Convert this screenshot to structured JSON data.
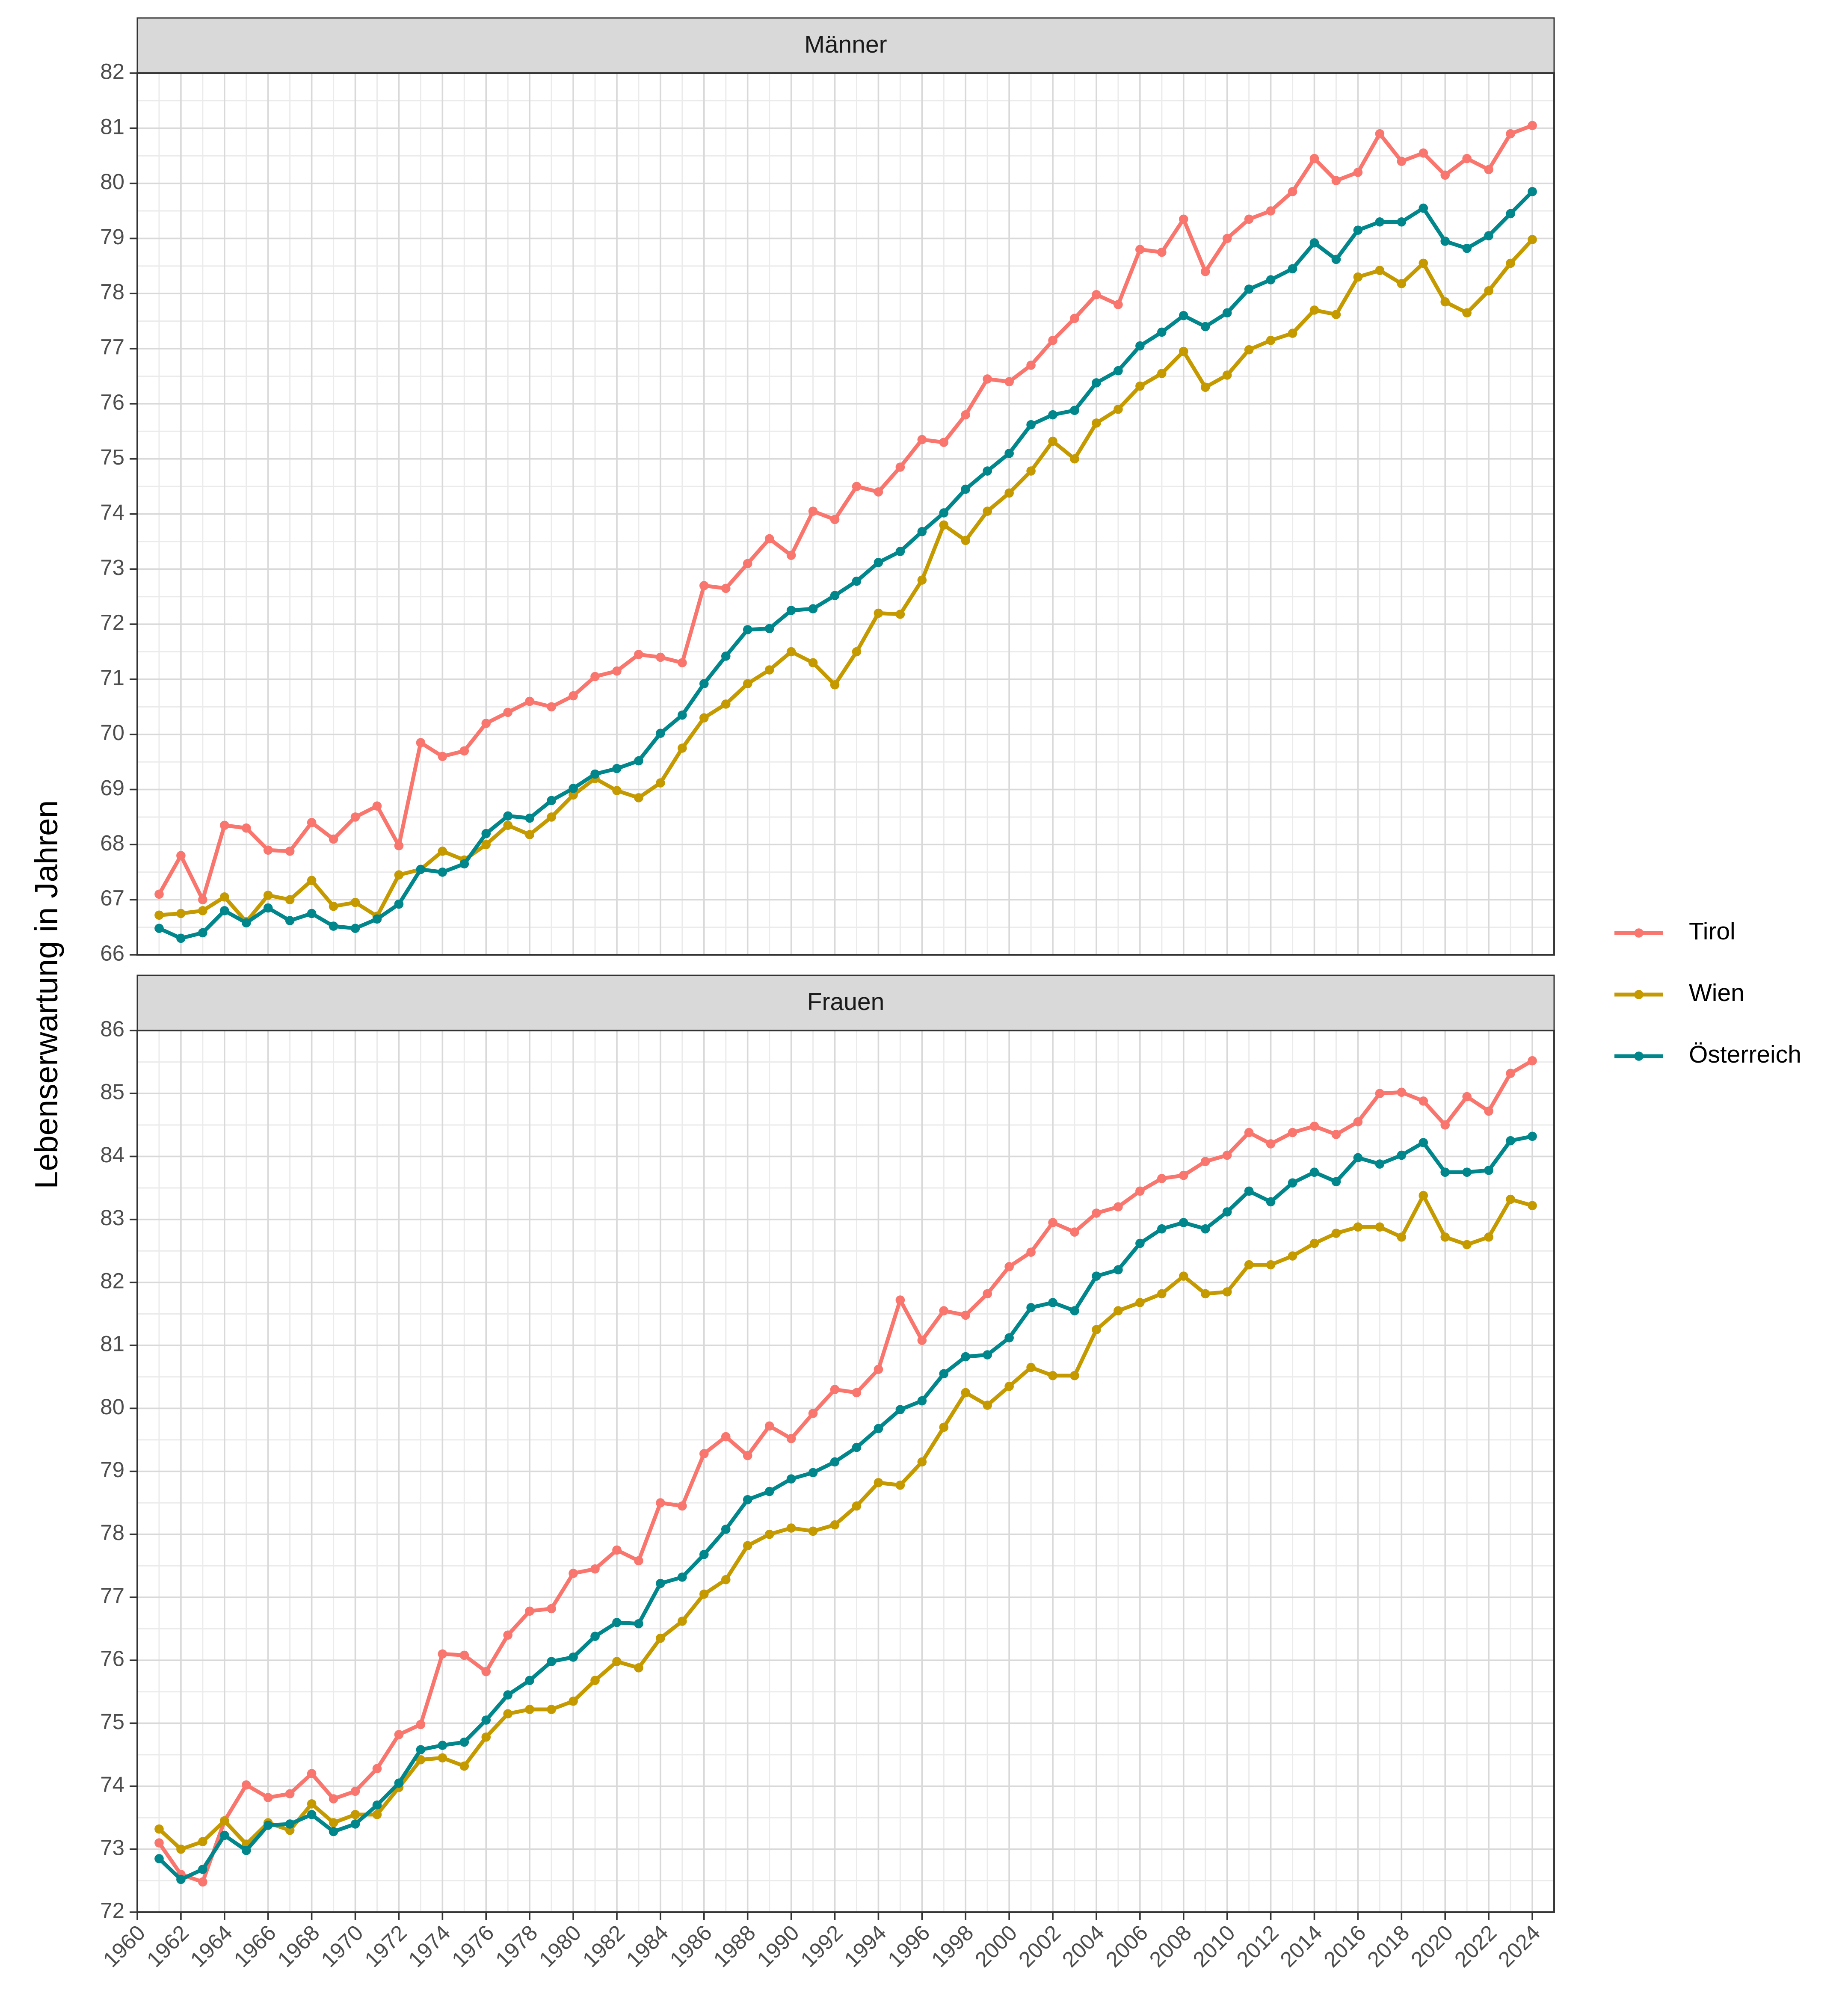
{
  "chart_data": [
    {
      "type": "line",
      "title": "Männer",
      "ylabel": "Lebenserwartung in Jahren",
      "legend": "right",
      "grid": true,
      "x": [
        1961,
        1962,
        1963,
        1964,
        1965,
        1966,
        1967,
        1968,
        1969,
        1970,
        1971,
        1972,
        1973,
        1974,
        1975,
        1976,
        1977,
        1978,
        1979,
        1980,
        1981,
        1982,
        1983,
        1984,
        1985,
        1986,
        1987,
        1988,
        1989,
        1990,
        1991,
        1992,
        1993,
        1994,
        1995,
        1996,
        1997,
        1998,
        1999,
        2000,
        2001,
        2002,
        2003,
        2004,
        2005,
        2006,
        2007,
        2008,
        2009,
        2010,
        2011,
        2012,
        2013,
        2014,
        2015,
        2016,
        2017,
        2018,
        2019,
        2020,
        2021,
        2022,
        2023,
        2024
      ],
      "xlim": [
        1960,
        2025
      ],
      "xticks": [
        1960,
        1962,
        1964,
        1966,
        1968,
        1970,
        1972,
        1974,
        1976,
        1978,
        1980,
        1982,
        1984,
        1986,
        1988,
        1990,
        1992,
        1994,
        1996,
        1998,
        2000,
        2002,
        2004,
        2006,
        2008,
        2010,
        2012,
        2014,
        2016,
        2018,
        2020,
        2022,
        2024
      ],
      "ylim": [
        66,
        82
      ],
      "yticks": [
        66,
        67,
        68,
        69,
        70,
        71,
        72,
        73,
        74,
        75,
        76,
        77,
        78,
        79,
        80,
        81,
        82
      ],
      "series": [
        {
          "name": "Tirol",
          "color": "#F8766D",
          "values": [
            67.1,
            67.8,
            67.0,
            68.35,
            68.3,
            67.9,
            67.88,
            68.4,
            68.1,
            68.5,
            68.7,
            67.98,
            69.85,
            69.6,
            69.7,
            70.2,
            70.4,
            70.6,
            70.5,
            70.7,
            71.05,
            71.15,
            71.45,
            71.4,
            71.3,
            72.7,
            72.65,
            73.1,
            73.55,
            73.25,
            74.05,
            73.9,
            74.5,
            74.4,
            74.85,
            75.35,
            75.3,
            75.8,
            76.45,
            76.4,
            76.7,
            77.15,
            77.55,
            77.98,
            77.8,
            78.8,
            78.75,
            79.35,
            78.4,
            79.0,
            79.35,
            79.5,
            79.85,
            80.45,
            80.05,
            80.2,
            80.9,
            80.4,
            80.55,
            80.15,
            80.45,
            80.25,
            80.9,
            81.05
          ]
        },
        {
          "name": "Wien",
          "color": "#C49A00",
          "values": [
            66.72,
            66.75,
            66.8,
            67.05,
            66.6,
            67.08,
            67.0,
            67.35,
            66.88,
            66.95,
            66.7,
            67.45,
            67.55,
            67.88,
            67.72,
            68.0,
            68.35,
            68.18,
            68.5,
            68.9,
            69.2,
            68.98,
            68.85,
            69.12,
            69.75,
            70.3,
            70.55,
            70.92,
            71.17,
            71.5,
            71.3,
            70.9,
            71.5,
            72.2,
            72.18,
            72.8,
            73.8,
            73.52,
            74.05,
            74.38,
            74.78,
            75.32,
            75.0,
            75.65,
            75.9,
            76.32,
            76.55,
            76.95,
            76.3,
            76.52,
            76.98,
            77.15,
            77.28,
            77.7,
            77.62,
            78.3,
            78.42,
            78.18,
            78.55,
            77.85,
            77.65,
            78.05,
            78.55,
            78.98
          ]
        },
        {
          "name": "Österreich",
          "color": "#00868B",
          "values": [
            66.48,
            66.3,
            66.4,
            66.8,
            66.58,
            66.85,
            66.62,
            66.75,
            66.52,
            66.48,
            66.65,
            66.92,
            67.55,
            67.5,
            67.65,
            68.2,
            68.52,
            68.48,
            68.8,
            69.02,
            69.28,
            69.38,
            69.52,
            70.02,
            70.35,
            70.92,
            71.42,
            71.9,
            71.92,
            72.25,
            72.28,
            72.52,
            72.78,
            73.12,
            73.32,
            73.68,
            74.02,
            74.45,
            74.78,
            75.1,
            75.62,
            75.8,
            75.88,
            76.38,
            76.6,
            77.05,
            77.3,
            77.6,
            77.4,
            77.65,
            78.08,
            78.25,
            78.45,
            78.92,
            78.62,
            79.15,
            79.3,
            79.3,
            79.55,
            78.95,
            78.82,
            79.05,
            79.45,
            79.85
          ]
        }
      ]
    },
    {
      "type": "line",
      "title": "Frauen",
      "grid": true,
      "x": [
        1961,
        1962,
        1963,
        1964,
        1965,
        1966,
        1967,
        1968,
        1969,
        1970,
        1971,
        1972,
        1973,
        1974,
        1975,
        1976,
        1977,
        1978,
        1979,
        1980,
        1981,
        1982,
        1983,
        1984,
        1985,
        1986,
        1987,
        1988,
        1989,
        1990,
        1991,
        1992,
        1993,
        1994,
        1995,
        1996,
        1997,
        1998,
        1999,
        2000,
        2001,
        2002,
        2003,
        2004,
        2005,
        2006,
        2007,
        2008,
        2009,
        2010,
        2011,
        2012,
        2013,
        2014,
        2015,
        2016,
        2017,
        2018,
        2019,
        2020,
        2021,
        2022,
        2023,
        2024
      ],
      "xlim": [
        1960,
        2025
      ],
      "xticks": [
        1960,
        1962,
        1964,
        1966,
        1968,
        1970,
        1972,
        1974,
        1976,
        1978,
        1980,
        1982,
        1984,
        1986,
        1988,
        1990,
        1992,
        1994,
        1996,
        1998,
        2000,
        2002,
        2004,
        2006,
        2008,
        2010,
        2012,
        2014,
        2016,
        2018,
        2020,
        2022,
        2024
      ],
      "ylim": [
        72,
        86
      ],
      "yticks": [
        72,
        73,
        74,
        75,
        76,
        77,
        78,
        79,
        80,
        81,
        82,
        83,
        84,
        85,
        86
      ],
      "series": [
        {
          "name": "Tirol",
          "color": "#F8766D",
          "values": [
            73.1,
            72.6,
            72.48,
            73.45,
            74.02,
            73.82,
            73.88,
            74.2,
            73.8,
            73.92,
            74.28,
            74.82,
            74.98,
            76.1,
            76.08,
            75.82,
            76.4,
            76.78,
            76.82,
            77.38,
            77.45,
            77.75,
            77.58,
            78.5,
            78.45,
            79.28,
            79.55,
            79.25,
            79.72,
            79.52,
            79.92,
            80.3,
            80.25,
            80.62,
            81.72,
            81.08,
            81.55,
            81.48,
            81.82,
            82.25,
            82.48,
            82.95,
            82.8,
            83.1,
            83.2,
            83.45,
            83.65,
            83.7,
            83.92,
            84.02,
            84.38,
            84.2,
            84.38,
            84.48,
            84.35,
            84.55,
            85.0,
            85.02,
            84.88,
            84.5,
            84.95,
            84.72,
            85.32,
            85.52
          ]
        },
        {
          "name": "Wien",
          "color": "#C49A00",
          "values": [
            73.32,
            73.0,
            73.12,
            73.45,
            73.08,
            73.42,
            73.3,
            73.72,
            73.42,
            73.55,
            73.55,
            73.98,
            74.42,
            74.45,
            74.32,
            74.78,
            75.15,
            75.22,
            75.22,
            75.35,
            75.68,
            75.98,
            75.88,
            76.35,
            76.62,
            77.05,
            77.28,
            77.82,
            78.0,
            78.1,
            78.05,
            78.15,
            78.45,
            78.82,
            78.78,
            79.15,
            79.7,
            80.25,
            80.05,
            80.35,
            80.65,
            80.52,
            80.52,
            81.25,
            81.55,
            81.68,
            81.82,
            82.1,
            81.82,
            81.85,
            82.28,
            82.28,
            82.42,
            82.62,
            82.78,
            82.88,
            82.88,
            82.72,
            83.38,
            82.72,
            82.6,
            82.72,
            83.32,
            83.22
          ]
        },
        {
          "name": "Österreich",
          "color": "#00868B",
          "values": [
            72.85,
            72.52,
            72.68,
            73.22,
            72.98,
            73.38,
            73.4,
            73.55,
            73.28,
            73.4,
            73.7,
            74.05,
            74.58,
            74.65,
            74.7,
            75.05,
            75.45,
            75.68,
            75.98,
            76.05,
            76.38,
            76.6,
            76.58,
            77.22,
            77.32,
            77.68,
            78.08,
            78.55,
            78.68,
            78.88,
            78.98,
            79.15,
            79.38,
            79.68,
            79.98,
            80.12,
            80.55,
            80.82,
            80.85,
            81.12,
            81.6,
            81.68,
            81.55,
            82.1,
            82.2,
            82.62,
            82.85,
            82.95,
            82.85,
            83.12,
            83.45,
            83.28,
            83.58,
            83.75,
            83.6,
            83.98,
            83.88,
            84.02,
            84.22,
            83.75,
            83.75,
            83.78,
            84.25,
            84.32
          ]
        }
      ]
    }
  ]
}
